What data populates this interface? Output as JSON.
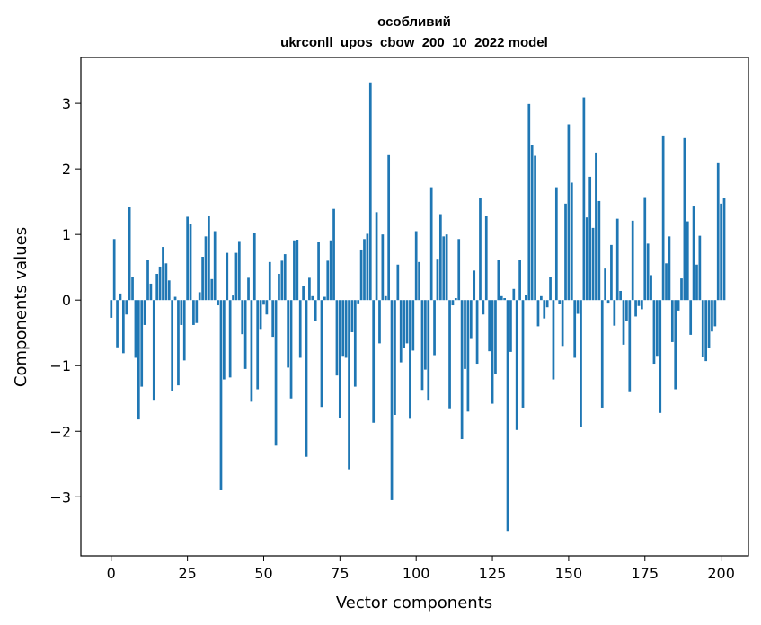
{
  "chart_data": {
    "type": "bar",
    "title": "особливий",
    "subtitle": "ukrconll_upos_cbow_200_10_2022 model",
    "xlabel": "Vector components",
    "ylabel": "Components values",
    "xlim": [
      -9.95,
      208.95
    ],
    "ylim": [
      -3.9,
      3.7
    ],
    "xticks": [
      0,
      25,
      50,
      75,
      100,
      125,
      150,
      175,
      200
    ],
    "xtick_labels": [
      "0",
      "25",
      "50",
      "75",
      "100",
      "125",
      "150",
      "175",
      "200"
    ],
    "yticks": [
      -3,
      -2,
      -1,
      0,
      1,
      2,
      3
    ],
    "ytick_labels": [
      "−3",
      "−2",
      "−1",
      "0",
      "1",
      "2",
      "3"
    ],
    "grid": false,
    "bar_color": "#1f77b4",
    "x_start": 0,
    "values": [
      -0.27,
      0.93,
      -0.72,
      0.1,
      -0.81,
      -0.22,
      1.42,
      0.35,
      -0.88,
      -1.82,
      -1.32,
      -0.38,
      0.61,
      0.25,
      -1.52,
      0.4,
      0.51,
      0.81,
      0.56,
      0.3,
      -1.38,
      0.05,
      -1.3,
      -0.38,
      -0.92,
      1.27,
      1.16,
      -0.38,
      -0.35,
      0.12,
      0.66,
      0.97,
      1.29,
      0.32,
      1.05,
      -0.08,
      -2.9,
      -1.21,
      0.72,
      -1.18,
      0.07,
      0.72,
      0.9,
      -0.52,
      -1.05,
      0.34,
      -1.55,
      1.02,
      -1.36,
      -0.44,
      -0.07,
      -0.22,
      0.58,
      -0.56,
      -2.22,
      0.4,
      0.6,
      0.7,
      -1.03,
      -1.5,
      0.91,
      0.92,
      -0.88,
      0.22,
      -2.39,
      0.34,
      0.06,
      -0.32,
      0.89,
      -1.63,
      0.05,
      0.6,
      0.91,
      1.39,
      -1.15,
      -1.8,
      -0.85,
      -0.88,
      -2.58,
      -0.49,
      -1.32,
      -0.05,
      0.77,
      0.93,
      1.01,
      3.32,
      -1.87,
      1.34,
      -0.66,
      1.0,
      0.06,
      2.21,
      -3.05,
      -1.75,
      0.54,
      -0.95,
      -0.73,
      -0.66,
      -1.81,
      -0.77,
      1.05,
      0.58,
      -1.37,
      -1.06,
      -1.52,
      1.72,
      -0.84,
      0.63,
      1.31,
      0.97,
      1.0,
      -1.65,
      -0.08,
      0.03,
      0.93,
      -2.12,
      -1.05,
      -1.7,
      -0.58,
      0.45,
      -0.97,
      1.56,
      -0.22,
      1.28,
      -0.78,
      -1.58,
      -1.13,
      0.61,
      0.06,
      0.03,
      -3.52,
      -0.79,
      0.17,
      -1.98,
      0.61,
      -1.64,
      0.08,
      2.99,
      2.37,
      2.2,
      -0.4,
      0.06,
      -0.28,
      -0.11,
      0.35,
      -1.21,
      1.72,
      -0.06,
      -0.7,
      1.47,
      2.68,
      1.79,
      -0.88,
      -0.21,
      -1.93,
      3.09,
      1.26,
      1.88,
      1.1,
      2.25,
      1.51,
      -1.64,
      0.48,
      -0.04,
      0.84,
      -0.39,
      1.24,
      0.14,
      -0.68,
      -0.32,
      -1.39,
      1.21,
      -0.25,
      -0.09,
      -0.14,
      1.57,
      0.86,
      0.38,
      -0.97,
      -0.85,
      -1.72,
      2.51,
      0.56,
      0.97,
      -0.64,
      -1.36,
      -0.16,
      0.33,
      2.47,
      1.2,
      -0.53,
      1.44,
      0.54,
      0.98,
      -0.87,
      -0.93,
      -0.73,
      -0.48,
      -0.4,
      2.1,
      1.47,
      1.55
    ]
  }
}
